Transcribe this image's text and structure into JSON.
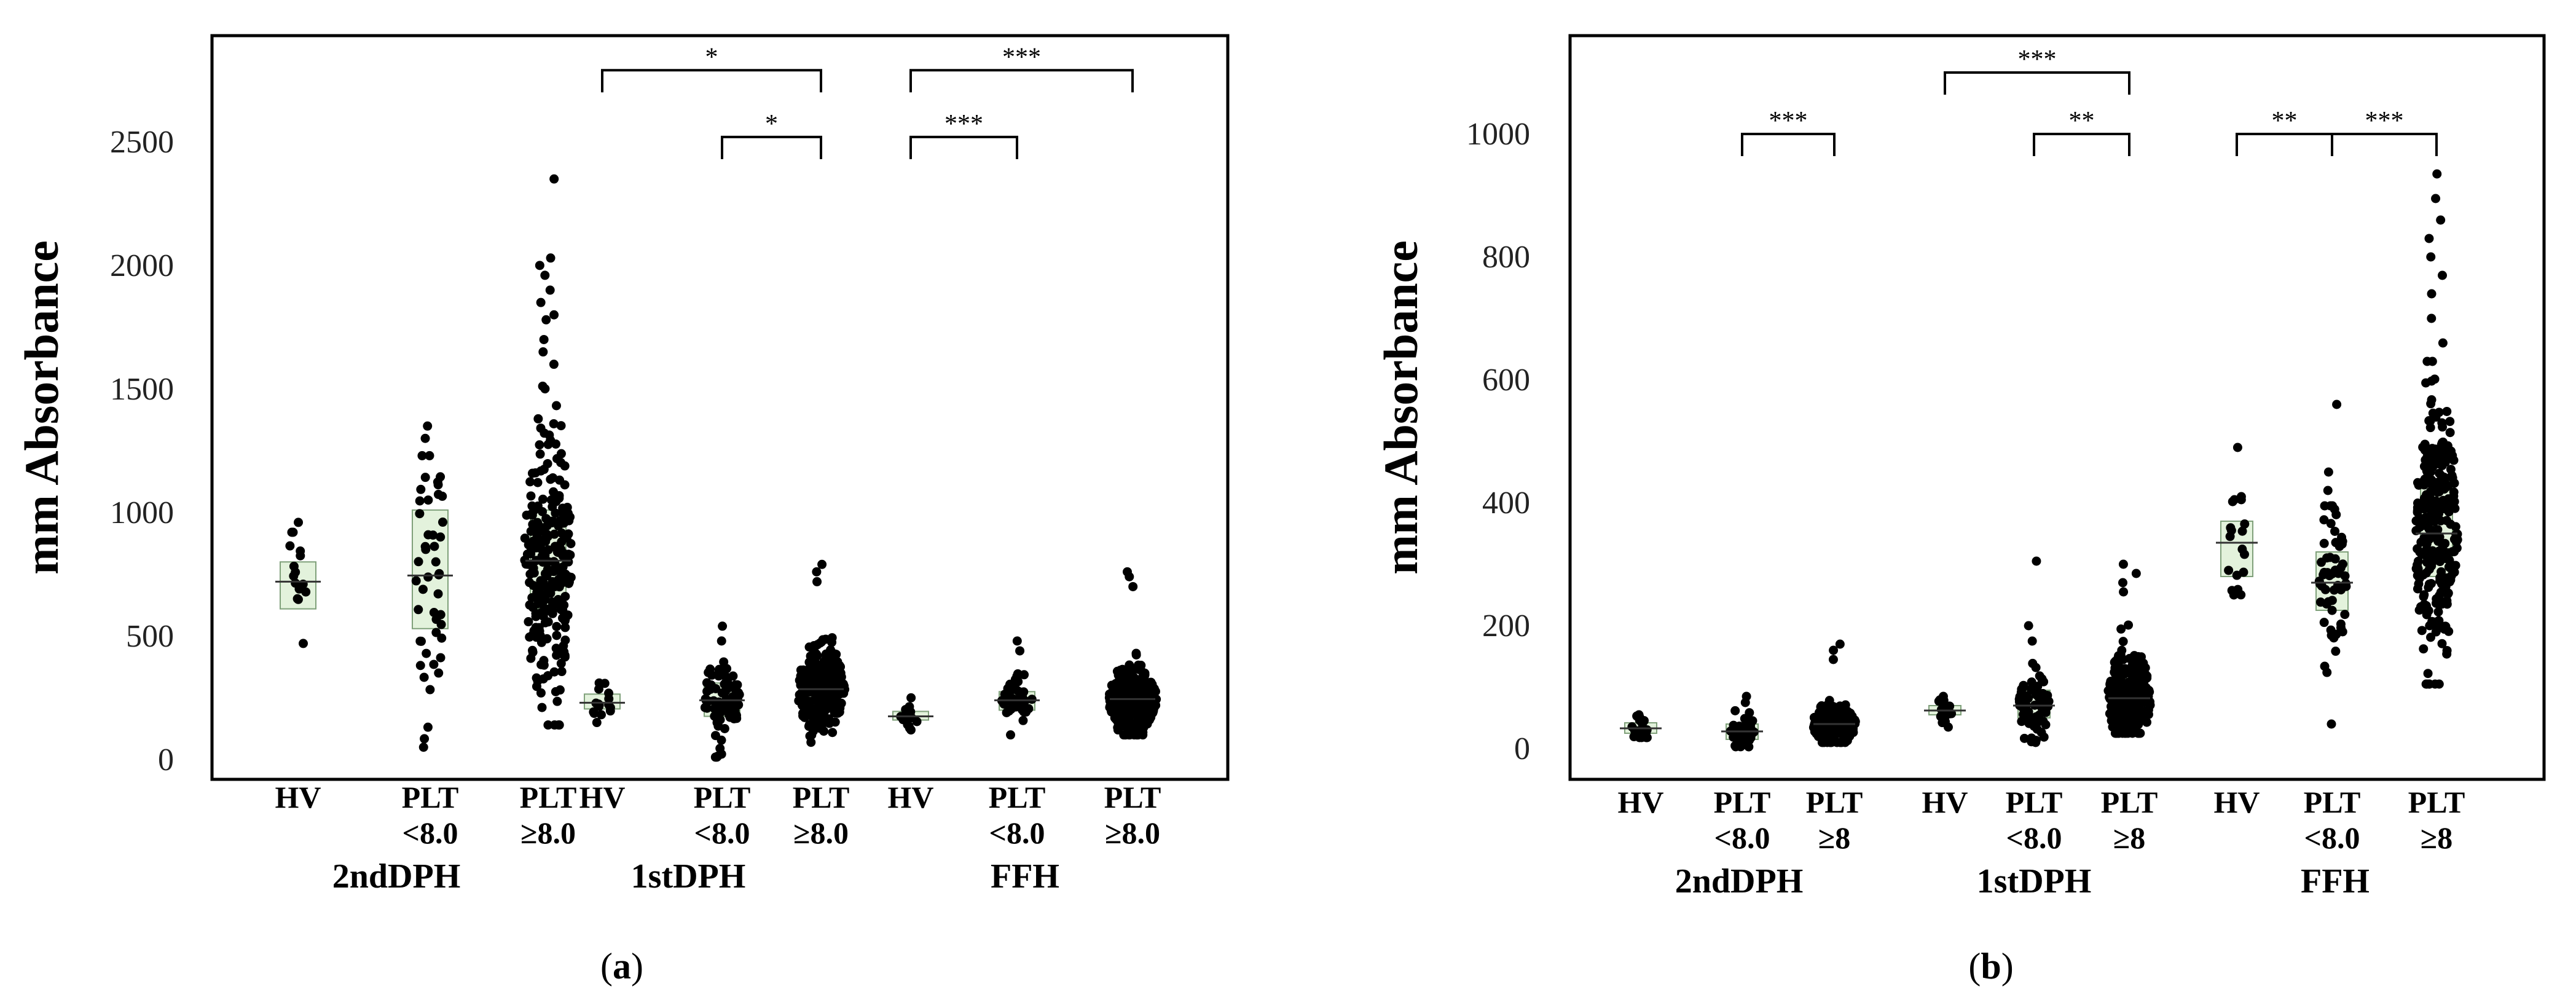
{
  "chart_data": [
    {
      "panel_label": "(a)",
      "panel_letter": "a",
      "type": "scatter",
      "ylabel": "mm Absorbance",
      "ylim": [
        -80,
        2930
      ],
      "yticks": [
        0,
        500,
        1000,
        1500,
        2000,
        2500
      ],
      "group_names": [
        "2ndDPH",
        "1stDPH",
        "FFH"
      ],
      "categories": [
        {
          "label": [
            "HV"
          ],
          "group": 0,
          "median": 720,
          "q1": 610,
          "q3": 800,
          "n": 16,
          "min": 470,
          "max": 960,
          "highs": [
            960,
            920
          ]
        },
        {
          "label": [
            "PLT",
            "<8.0"
          ],
          "group": 0,
          "median": 745,
          "q1": 530,
          "q3": 1010,
          "n": 48,
          "min": 50,
          "max": 1350,
          "highs": [
            1350,
            1300,
            1230
          ]
        },
        {
          "label": [
            "PLT",
            "≥8.0"
          ],
          "group": 0,
          "median": 805,
          "q1": 610,
          "q3": 1010,
          "n": 260,
          "min": 140,
          "max": 2350,
          "highs": [
            2350,
            2030,
            2000,
            1960,
            1900,
            1850,
            1800,
            1780,
            1700,
            1650,
            1600
          ]
        },
        {
          "label": [
            "HV"
          ],
          "group": 1,
          "median": 230,
          "q1": 205,
          "q3": 265,
          "n": 16,
          "min": 150,
          "max": 320,
          "highs": [
            310
          ]
        },
        {
          "label": [
            "PLT",
            "<8.0"
          ],
          "group": 1,
          "median": 240,
          "q1": 175,
          "q3": 310,
          "n": 75,
          "min": 10,
          "max": 540,
          "highs": [
            540,
            480
          ]
        },
        {
          "label": [
            "PLT",
            "≥8.0"
          ],
          "group": 1,
          "median": 285,
          "q1": 225,
          "q3": 345,
          "n": 270,
          "min": 70,
          "max": 790,
          "highs": [
            790,
            760,
            720
          ]
        },
        {
          "label": [
            "HV"
          ],
          "group": 2,
          "median": 175,
          "q1": 160,
          "q3": 195,
          "n": 16,
          "min": 120,
          "max": 250,
          "highs": [
            250
          ]
        },
        {
          "label": [
            "PLT",
            "<8.0"
          ],
          "group": 2,
          "median": 240,
          "q1": 200,
          "q3": 275,
          "n": 55,
          "min": 100,
          "max": 480,
          "highs": [
            480,
            440
          ]
        },
        {
          "label": [
            "PLT",
            "≥8.0"
          ],
          "group": 2,
          "median": 245,
          "q1": 205,
          "q3": 305,
          "n": 260,
          "min": 100,
          "max": 760,
          "highs": [
            760,
            740,
            700
          ]
        }
      ],
      "brackets": [
        {
          "from": 3,
          "to": 5,
          "y": 2790,
          "label": "*"
        },
        {
          "from": 4,
          "to": 5,
          "y": 2520,
          "label": "*"
        },
        {
          "from": 6,
          "to": 8,
          "y": 2790,
          "label": "***"
        },
        {
          "from": 6,
          "to": 7,
          "y": 2520,
          "label": "***"
        }
      ]
    },
    {
      "panel_label": "(b)",
      "panel_letter": "b",
      "type": "scatter",
      "ylabel": "mm Absorbance",
      "ylim": [
        -50,
        1160
      ],
      "yticks": [
        0,
        200,
        400,
        600,
        800,
        1000
      ],
      "group_names": [
        "2ndDPH",
        "1stDPH",
        "FFH"
      ],
      "categories": [
        {
          "label": [
            "HV"
          ],
          "group": 0,
          "median": 33,
          "q1": 25,
          "q3": 42,
          "n": 18,
          "min": 18,
          "max": 55,
          "highs": [
            55
          ]
        },
        {
          "label": [
            "PLT",
            "<8.0"
          ],
          "group": 0,
          "median": 28,
          "q1": 15,
          "q3": 40,
          "n": 45,
          "min": 3,
          "max": 85,
          "highs": [
            85,
            75
          ]
        },
        {
          "label": [
            "PLT",
            "≥8"
          ],
          "group": 0,
          "median": 40,
          "q1": 30,
          "q3": 55,
          "n": 200,
          "min": 10,
          "max": 170,
          "highs": [
            170,
            160,
            145
          ]
        },
        {
          "label": [
            "HV"
          ],
          "group": 1,
          "median": 62,
          "q1": 55,
          "q3": 70,
          "n": 16,
          "min": 35,
          "max": 85,
          "highs": [
            85
          ]
        },
        {
          "label": [
            "PLT",
            "<8.0"
          ],
          "group": 1,
          "median": 70,
          "q1": 50,
          "q3": 95,
          "n": 70,
          "min": 10,
          "max": 305,
          "highs": [
            305,
            200,
            175
          ]
        },
        {
          "label": [
            "PLT",
            "≥8"
          ],
          "group": 1,
          "median": 82,
          "q1": 65,
          "q3": 120,
          "n": 270,
          "min": 25,
          "max": 300,
          "highs": [
            300,
            285,
            270,
            255
          ]
        },
        {
          "label": [
            "HV"
          ],
          "group": 2,
          "median": 335,
          "q1": 280,
          "q3": 370,
          "n": 20,
          "min": 250,
          "max": 490,
          "highs": [
            490,
            410,
            405
          ]
        },
        {
          "label": [
            "PLT",
            "<8.0"
          ],
          "group": 2,
          "median": 270,
          "q1": 225,
          "q3": 320,
          "n": 60,
          "min": 40,
          "max": 560,
          "highs": [
            560,
            450,
            420,
            395
          ]
        },
        {
          "label": [
            "PLT",
            "≥8"
          ],
          "group": 2,
          "median": 350,
          "q1": 280,
          "q3": 435,
          "n": 280,
          "min": 105,
          "max": 935,
          "highs": [
            935,
            895,
            860,
            830,
            800,
            770,
            740,
            700,
            660,
            630
          ]
        }
      ],
      "brackets": [
        {
          "from": 1,
          "to": 2,
          "y": 1000,
          "label": "***"
        },
        {
          "from": 3,
          "to": 5,
          "y": 1100,
          "label": "***"
        },
        {
          "from": 4,
          "to": 5,
          "y": 1000,
          "label": "**"
        },
        {
          "from": 6,
          "to": 7,
          "y": 1000,
          "label": "**"
        },
        {
          "from": 7,
          "to": 8,
          "y": 1000,
          "label": "***"
        }
      ]
    }
  ]
}
